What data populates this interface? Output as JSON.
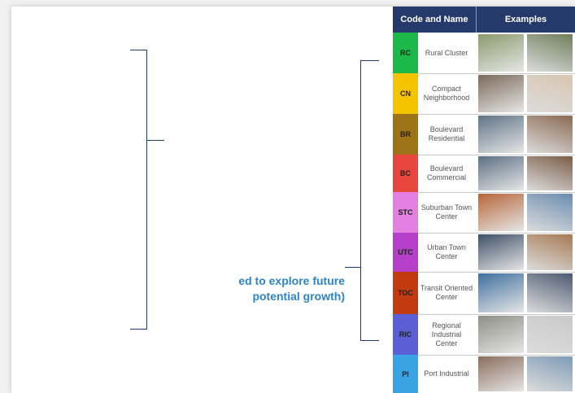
{
  "caption": {
    "line1": "ed to explore future",
    "line2": "potential growth)"
  },
  "table": {
    "header": {
      "code_name": "Code and Name",
      "examples": "Examples"
    },
    "rows": [
      {
        "code": "RC",
        "name": "Rural Cluster",
        "color": "#1db84a",
        "photo_colors": [
          "#8b9a6d",
          "#6f7e5a"
        ]
      },
      {
        "code": "CN",
        "name": "Compact Neighborhood",
        "color": "#f5c400",
        "photo_colors": [
          "#7a6a5a",
          "#d8c6b0"
        ]
      },
      {
        "code": "BR",
        "name": "Boulevard Residential",
        "color": "#9c7417",
        "photo_colors": [
          "#5f7386",
          "#8b6a52"
        ]
      },
      {
        "code": "BC",
        "name": "Boulevard Commercial",
        "color": "#e8453c",
        "photo_colors": [
          "#5c6f83",
          "#7a5c46"
        ]
      },
      {
        "code": "STC",
        "name": "Suburban Town Center",
        "color": "#e27fe0",
        "photo_colors": [
          "#b6653a",
          "#6b8db0"
        ]
      },
      {
        "code": "UTC",
        "name": "Urban Town Center",
        "color": "#b53fc9",
        "photo_colors": [
          "#3e4f66",
          "#a67a52"
        ]
      },
      {
        "code": "TOC",
        "name": "Transit Oriented Center",
        "color": "#c23b10",
        "photo_colors": [
          "#3f6f9f",
          "#4d5a72"
        ]
      },
      {
        "code": "RIC",
        "name": "Regional Industrial Center",
        "color": "#5b5fd6",
        "photo_colors": [
          "#8d8f86",
          "#c9c9c9"
        ]
      },
      {
        "code": "PI",
        "name": "Port Industrial",
        "color": "#3aa3e2",
        "photo_colors": [
          "#8a6d5c",
          "#7f9bb6"
        ]
      }
    ]
  }
}
